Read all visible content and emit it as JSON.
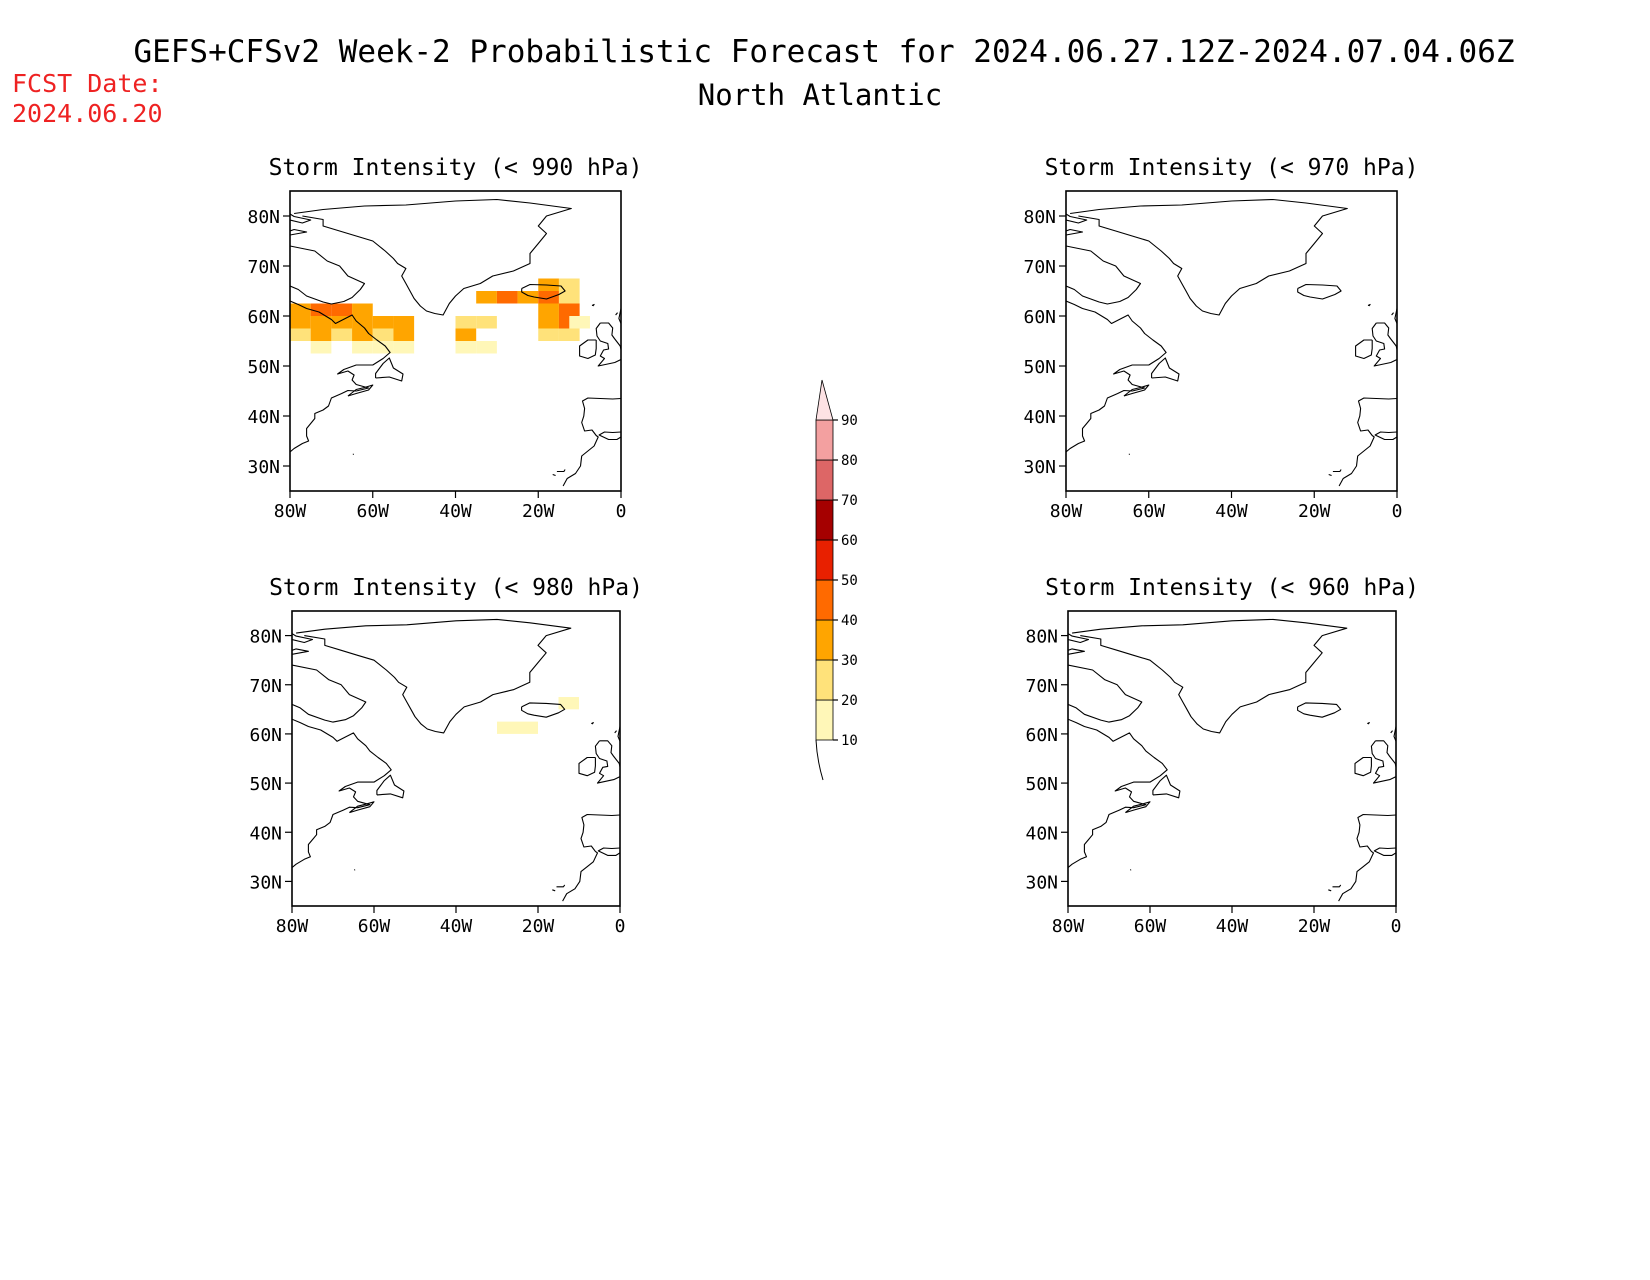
{
  "header": {
    "title": "GEFS+CFSv2 Week-2 Probabilistic Forecast for 2024.06.27.12Z-2024.07.04.06Z",
    "region": "North Atlantic",
    "fcst_date_label": "FCST Date:",
    "fcst_date": "2024.06.20"
  },
  "axes": {
    "lat_labels": [
      "80N",
      "70N",
      "60N",
      "50N",
      "40N",
      "30N"
    ],
    "lon_labels": [
      "80W",
      "60W",
      "40W",
      "20W",
      "0"
    ]
  },
  "colorbar": {
    "labels": [
      "10",
      "20",
      "30",
      "40",
      "50",
      "60",
      "70",
      "80",
      "90"
    ],
    "colors": [
      "#fff7b8",
      "#ffe27a",
      "#ffa500",
      "#ff6a00",
      "#e82000",
      "#a50000",
      "#dd6666",
      "#f3a0a0",
      "#fde2e4"
    ]
  },
  "chart_data": [
    {
      "type": "heatmap",
      "title": "Storm Intensity (< 990 hPa)",
      "lon_range": [
        -80,
        0
      ],
      "lat_range": [
        25,
        85
      ],
      "cells": [
        {
          "lon": -80,
          "lat": 60,
          "value": 35
        },
        {
          "lon": -75,
          "lat": 60,
          "value": 45
        },
        {
          "lon": -70,
          "lat": 60,
          "value": 45
        },
        {
          "lon": -65,
          "lat": 60,
          "value": 35
        },
        {
          "lon": -80,
          "lat": 57.5,
          "value": 35
        },
        {
          "lon": -75,
          "lat": 57.5,
          "value": 35
        },
        {
          "lon": -70,
          "lat": 57.5,
          "value": 35
        },
        {
          "lon": -65,
          "lat": 57.5,
          "value": 35
        },
        {
          "lon": -60,
          "lat": 57.5,
          "value": 35
        },
        {
          "lon": -55,
          "lat": 57.5,
          "value": 35
        },
        {
          "lon": -80,
          "lat": 55,
          "value": 25
        },
        {
          "lon": -75,
          "lat": 55,
          "value": 35
        },
        {
          "lon": -70,
          "lat": 55,
          "value": 25
        },
        {
          "lon": -65,
          "lat": 55,
          "value": 35
        },
        {
          "lon": -60,
          "lat": 55,
          "value": 25
        },
        {
          "lon": -55,
          "lat": 55,
          "value": 35
        },
        {
          "lon": -75,
          "lat": 52.5,
          "value": 15
        },
        {
          "lon": -65,
          "lat": 52.5,
          "value": 15
        },
        {
          "lon": -60,
          "lat": 52.5,
          "value": 15
        },
        {
          "lon": -55,
          "lat": 52.5,
          "value": 15
        },
        {
          "lon": -35,
          "lat": 62.5,
          "value": 35
        },
        {
          "lon": -30,
          "lat": 62.5,
          "value": 45
        },
        {
          "lon": -25,
          "lat": 62.5,
          "value": 35
        },
        {
          "lon": -20,
          "lat": 62.5,
          "value": 45
        },
        {
          "lon": -15,
          "lat": 62.5,
          "value": 25
        },
        {
          "lon": -20,
          "lat": 65,
          "value": 35
        },
        {
          "lon": -15,
          "lat": 65,
          "value": 25
        },
        {
          "lon": -20,
          "lat": 60,
          "value": 35
        },
        {
          "lon": -15,
          "lat": 60,
          "value": 45
        },
        {
          "lon": -40,
          "lat": 57.5,
          "value": 25
        },
        {
          "lon": -35,
          "lat": 57.5,
          "value": 25
        },
        {
          "lon": -20,
          "lat": 57.5,
          "value": 35
        },
        {
          "lon": -15,
          "lat": 57.5,
          "value": 45
        },
        {
          "lon": -12.5,
          "lat": 57.5,
          "value": 15
        },
        {
          "lon": -40,
          "lat": 55,
          "value": 35
        },
        {
          "lon": -20,
          "lat": 55,
          "value": 25
        },
        {
          "lon": -15,
          "lat": 55,
          "value": 25
        },
        {
          "lon": -40,
          "lat": 52.5,
          "value": 15
        },
        {
          "lon": -35,
          "lat": 52.5,
          "value": 15
        }
      ]
    },
    {
      "type": "heatmap",
      "title": "Storm Intensity (< 970 hPa)",
      "lon_range": [
        -80,
        0
      ],
      "lat_range": [
        25,
        85
      ],
      "cells": []
    },
    {
      "type": "heatmap",
      "title": "Storm Intensity (< 980 hPa)",
      "lon_range": [
        -80,
        0
      ],
      "lat_range": [
        25,
        85
      ],
      "cells": [
        {
          "lon": -30,
          "lat": 60,
          "value": 12
        },
        {
          "lon": -25,
          "lat": 60,
          "value": 12
        },
        {
          "lon": -15,
          "lat": 65,
          "value": 12
        }
      ]
    },
    {
      "type": "heatmap",
      "title": "Storm Intensity (< 960 hPa)",
      "lon_range": [
        -80,
        0
      ],
      "lat_range": [
        25,
        85
      ],
      "cells": []
    }
  ]
}
